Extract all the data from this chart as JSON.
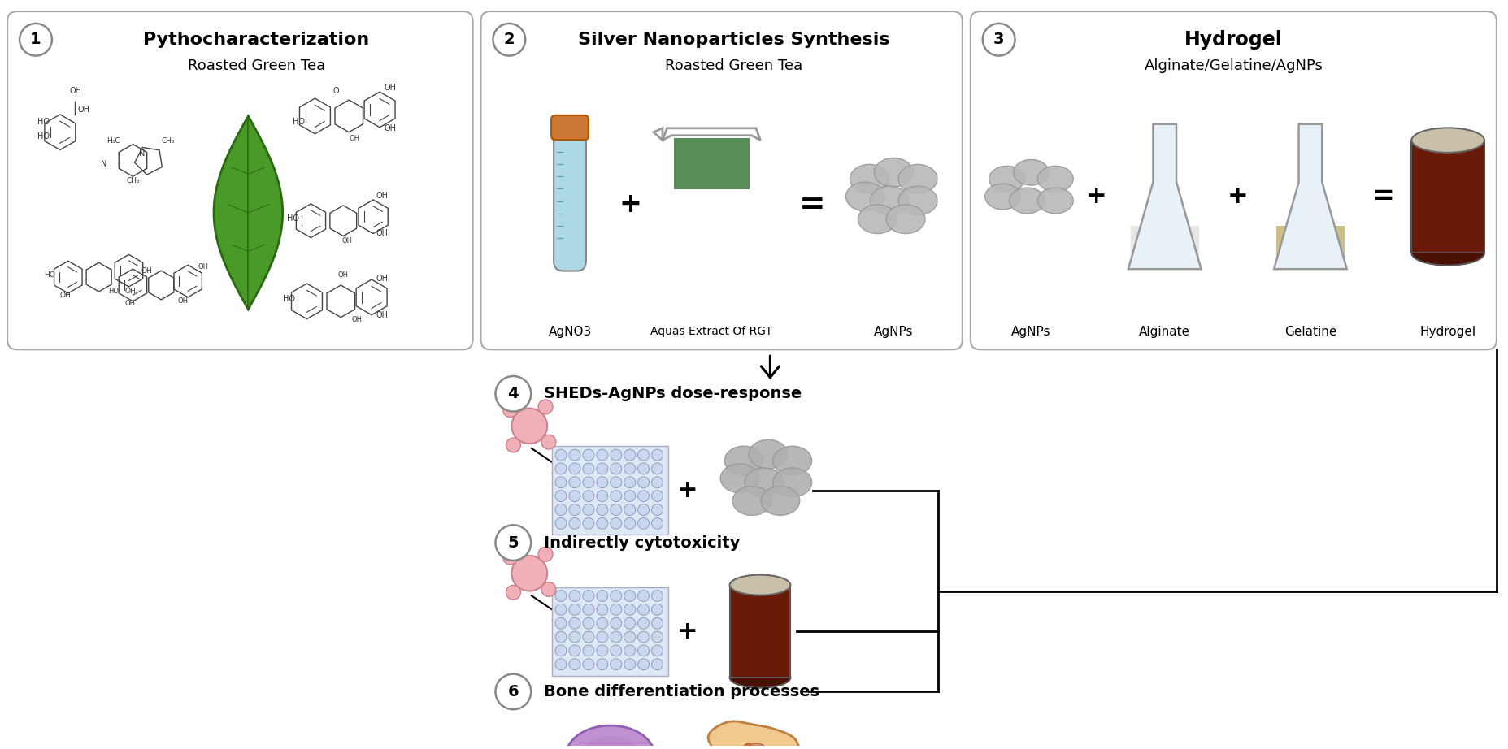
{
  "bg_color": "#ffffff",
  "panel1": {
    "number": "1",
    "title": "Pythocharacterization",
    "subtitle": "Roasted Green Tea"
  },
  "panel2": {
    "number": "2",
    "title": "Silver Nanoparticles Synthesis",
    "subtitle": "Roasted Green Tea",
    "labels": [
      "AgNO3",
      "Aquas Extract Of RGT",
      "AgNPs"
    ]
  },
  "panel3": {
    "number": "3",
    "title": "Hydrogel",
    "subtitle": "Alginate/Gelatine/AgNPs",
    "labels": [
      "AgNPs",
      "Alginate",
      "Gelatine",
      "Hydrogel"
    ]
  },
  "step4_title": "SHEDs-AgNPs dose-response",
  "step5_title": "Indirectly cytotoxicity",
  "step6_title": "Bone differentiation processes",
  "leaf_color": "#4a9a2a",
  "leaf_edge": "#2a6a10",
  "nanoparticle_color": "#b8b8b8",
  "tube_fill": "#add8e6",
  "tube_cap": "#cc7733",
  "beaker_liquid": "#3a7a3a",
  "flask_body": "#e8f0f8",
  "flask_powder_white": "#e0e0e0",
  "flask_powder_tan": "#c8b87a",
  "hydrogel_body": "#6a1a08",
  "hydrogel_top": "#c8c0a8",
  "well_color1": "#c8d8f0",
  "well_color2": "#c8d8ee",
  "shed_color": "#f0b0b8",
  "stem_color": "#c090d0",
  "diff_color": "#f0c890",
  "circle_edge": "#888888"
}
